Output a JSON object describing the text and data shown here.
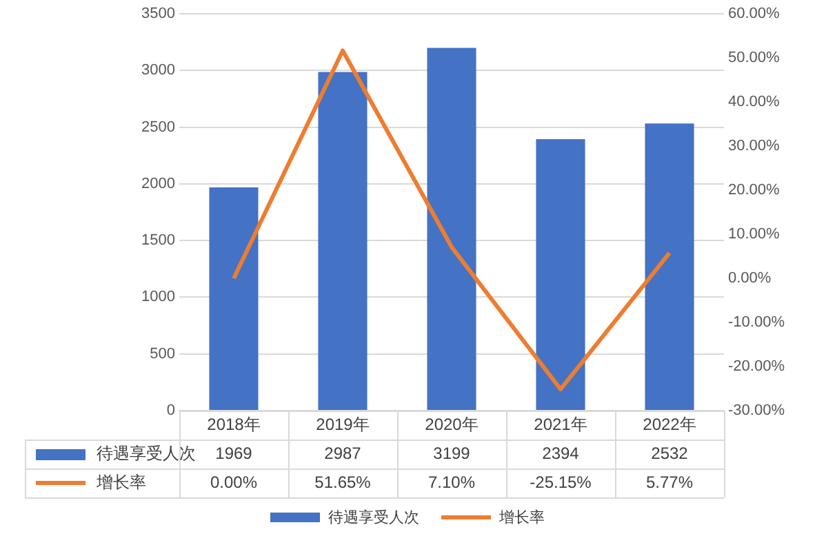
{
  "chart_data": {
    "type": "bar",
    "categories": [
      "2018年",
      "2019年",
      "2020年",
      "2021年",
      "2022年"
    ],
    "series": [
      {
        "name": "待遇享受人次",
        "type": "bar",
        "color": "#4472c4",
        "values": [
          1969,
          2987,
          3199,
          2394,
          2532
        ],
        "value_labels": [
          "1969",
          "2987",
          "3199",
          "2394",
          "2532"
        ]
      },
      {
        "name": "增长率",
        "type": "line",
        "axis": "y2",
        "color": "#ed7d31",
        "values": [
          0,
          51.65,
          7.1,
          -25.15,
          5.77
        ],
        "value_labels": [
          "0.00%",
          "51.65%",
          "7.10%",
          "-25.15%",
          "5.77%"
        ]
      }
    ],
    "ylim": [
      0,
      3500
    ],
    "yticks": [
      0,
      500,
      1000,
      1500,
      2000,
      2500,
      3000,
      3500
    ],
    "y2lim": [
      -30,
      60
    ],
    "y2ticks": [
      {
        "value": -30,
        "label": "-30.00%"
      },
      {
        "value": -20,
        "label": "-20.00%"
      },
      {
        "value": -10,
        "label": "-10.00%"
      },
      {
        "value": 0,
        "label": "0.00%"
      },
      {
        "value": 10,
        "label": "10.00%"
      },
      {
        "value": 20,
        "label": "20.00%"
      },
      {
        "value": 30,
        "label": "30.00%"
      },
      {
        "value": 40,
        "label": "40.00%"
      },
      {
        "value": 50,
        "label": "50.00%"
      },
      {
        "value": 60,
        "label": "60.00%"
      }
    ],
    "grid": "y",
    "legend": "bottom",
    "marker": "none",
    "line_style": "solid"
  }
}
